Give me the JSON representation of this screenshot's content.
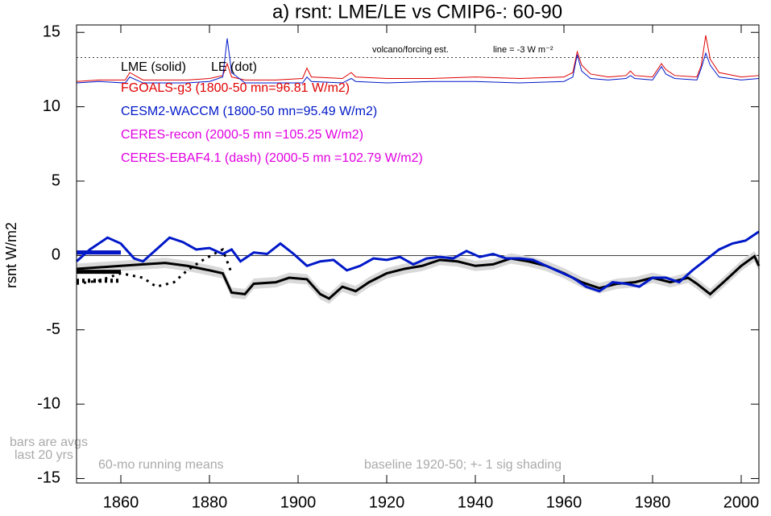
{
  "chart_data": {
    "type": "line",
    "title": "a) rsnt: LME/LE vs CMIP6-: 60-90",
    "ylabel": "rsnt W/m2",
    "xlim": [
      1850,
      2004
    ],
    "ylim": [
      -15.3,
      15.5
    ],
    "xticks": [
      1860,
      1880,
      1900,
      1920,
      1940,
      1960,
      1980,
      2000
    ],
    "yticks": [
      15,
      10,
      5,
      0,
      -5,
      -10,
      -15
    ],
    "zero_line": 0,
    "shading_sig": 0.35,
    "series": [
      {
        "name": "LME (solid)",
        "color": "#000000",
        "style": "solid",
        "bar": -1.1,
        "x": [
          1850,
          1855,
          1860,
          1865,
          1870,
          1875,
          1880,
          1883,
          1885,
          1888,
          1890,
          1895,
          1898,
          1902,
          1905,
          1907,
          1910,
          1913,
          1916,
          1920,
          1924,
          1928,
          1932,
          1936,
          1940,
          1944,
          1948,
          1952,
          1956,
          1960,
          1964,
          1968,
          1972,
          1976,
          1980,
          1984,
          1988,
          1990,
          1993,
          1996,
          2000,
          2003,
          2004
        ],
        "values": [
          -0.9,
          -0.8,
          -0.7,
          -0.6,
          -0.5,
          -0.7,
          -1.0,
          -1.2,
          -2.5,
          -2.6,
          -1.9,
          -1.8,
          -1.5,
          -1.6,
          -2.6,
          -2.9,
          -2.1,
          -2.4,
          -1.8,
          -1.2,
          -0.9,
          -0.7,
          -0.3,
          -0.4,
          -0.7,
          -0.6,
          -0.2,
          -0.4,
          -0.7,
          -1.2,
          -1.8,
          -2.2,
          -1.9,
          -1.8,
          -1.5,
          -1.8,
          -1.5,
          -1.9,
          -2.6,
          -1.8,
          -0.7,
          -0.05,
          -0.7
        ]
      },
      {
        "name": "LE (dot)",
        "color": "#000000",
        "style": "dot",
        "bar": -1.7,
        "x": [
          1850,
          1855,
          1860,
          1865,
          1868,
          1872,
          1875,
          1878,
          1881,
          1883,
          1885
        ],
        "values": [
          -1.9,
          -1.7,
          -1.2,
          -1.5,
          -2.1,
          -1.8,
          -1.0,
          -0.4,
          0.1,
          0.4,
          -1.2
        ]
      },
      {
        "name": "FGOALS-g3 (1800-50 mn=96.81 W/m2)",
        "color": "#e00000",
        "bar": 0.2
      },
      {
        "name": "CESM2-WACCM (1800-50 mn=95.49 W/m2)",
        "color": "#0018c8",
        "style": "solid",
        "bar": 0.2,
        "x": [
          1850,
          1853,
          1857,
          1860,
          1863,
          1865,
          1868,
          1871,
          1874,
          1877,
          1880,
          1883,
          1885,
          1887,
          1890,
          1893,
          1896,
          1899,
          1902,
          1905,
          1908,
          1911,
          1914,
          1917,
          1920,
          1923,
          1926,
          1929,
          1932,
          1935,
          1938,
          1941,
          1944,
          1947,
          1950,
          1953,
          1956,
          1959,
          1962,
          1965,
          1968,
          1971,
          1974,
          1977,
          1980,
          1983,
          1986,
          1989,
          1992,
          1995,
          1998,
          2001,
          2004
        ],
        "values": [
          -0.4,
          0.4,
          1.2,
          0.8,
          -0.2,
          -0.4,
          0.4,
          1.2,
          0.9,
          0.4,
          0.5,
          0.1,
          0.4,
          -0.4,
          0.2,
          0.1,
          0.8,
          0.1,
          -0.7,
          -0.4,
          -0.3,
          -1.0,
          -0.7,
          -0.2,
          -0.3,
          -0.1,
          -0.6,
          -0.2,
          -0.1,
          -0.2,
          0.3,
          -0.1,
          0.1,
          -0.2,
          -0.2,
          -0.3,
          -0.7,
          -1.1,
          -1.5,
          -2.1,
          -2.4,
          -1.8,
          -1.9,
          -2.1,
          -1.5,
          -1.5,
          -1.8,
          -1.0,
          -0.3,
          0.4,
          0.8,
          1.0,
          1.6
        ]
      },
      {
        "name": "CERES-recon (2000-5 mn =105.25 W/m2)",
        "color": "#e000e0"
      },
      {
        "name": "CERES-EBAF4.1 (dash) (2000-5 mn =102.79 W/m2)",
        "color": "#e000e0"
      }
    ],
    "forcing": {
      "label": "volcano/forcing est.",
      "line_label": "line = -3 W m⁻²",
      "line_value": 13.3,
      "x": [
        1850,
        1855,
        1861,
        1862,
        1865,
        1870,
        1875,
        1880,
        1883,
        1884,
        1885,
        1888,
        1895,
        1901,
        1902,
        1903,
        1910,
        1912,
        1913,
        1920,
        1930,
        1940,
        1950,
        1960,
        1962,
        1963,
        1964,
        1966,
        1970,
        1974,
        1975,
        1976,
        1980,
        1982,
        1983,
        1985,
        1990,
        1991,
        1992,
        1993,
        1995,
        2000,
        2004
      ],
      "series": [
        {
          "color": "#e00000",
          "values": [
            11.7,
            11.8,
            11.8,
            12.3,
            11.8,
            11.8,
            11.8,
            11.9,
            12.1,
            12.9,
            12.0,
            11.8,
            11.8,
            11.9,
            12.6,
            12.0,
            11.9,
            12.3,
            12.0,
            11.9,
            11.9,
            12.0,
            11.9,
            12.0,
            12.3,
            13.7,
            12.8,
            12.2,
            12.0,
            12.1,
            12.4,
            12.1,
            12.0,
            12.9,
            12.5,
            12.1,
            12.0,
            12.8,
            14.8,
            13.2,
            12.3,
            12.0,
            12.1
          ]
        },
        {
          "color": "#0018c8",
          "values": [
            11.6,
            11.7,
            11.6,
            12.0,
            11.6,
            11.6,
            11.6,
            11.7,
            12.0,
            14.6,
            12.3,
            11.6,
            11.6,
            11.6,
            12.0,
            11.7,
            11.6,
            11.9,
            11.7,
            11.6,
            11.7,
            11.7,
            11.6,
            11.7,
            12.0,
            13.5,
            12.4,
            11.9,
            11.8,
            11.9,
            12.1,
            11.9,
            11.8,
            12.7,
            12.2,
            11.9,
            11.8,
            12.6,
            13.6,
            12.8,
            12.0,
            11.8,
            11.9
          ]
        }
      ]
    },
    "annotations": [
      "bars are avgs",
      "last 20 yrs",
      "60-mo running means",
      "baseline 1920-50; +- 1 sig shading"
    ]
  }
}
